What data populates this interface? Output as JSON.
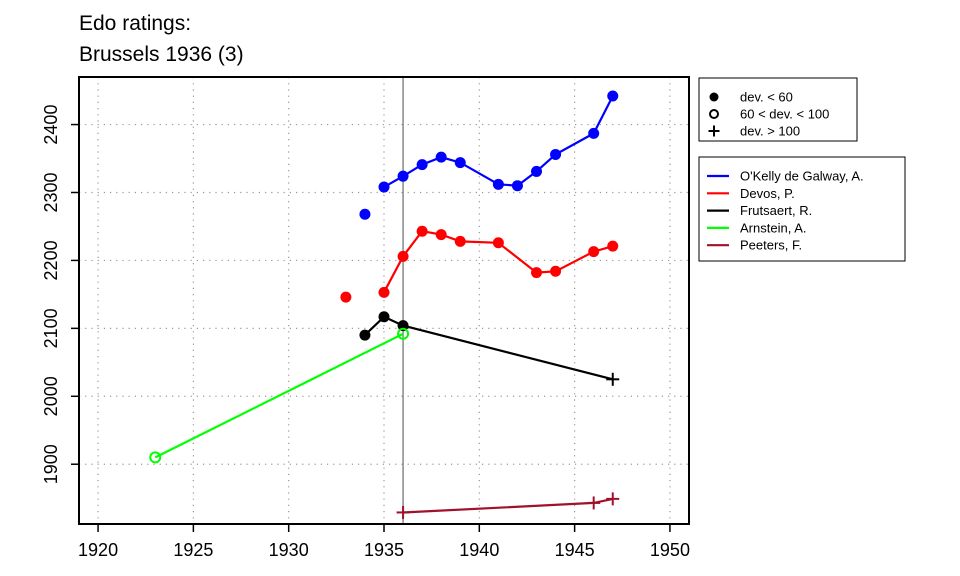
{
  "chart_data": {
    "type": "line",
    "title": "Edo ratings:",
    "subtitle": "Brussels 1936 (3)",
    "xlabel": "",
    "ylabel": "",
    "xlim": [
      1919,
      1951
    ],
    "ylim": [
      1812,
      2470
    ],
    "xticks": [
      1920,
      1925,
      1930,
      1935,
      1940,
      1945,
      1950
    ],
    "yticks": [
      1900,
      2000,
      2100,
      2200,
      2300,
      2400
    ],
    "grid": true,
    "reference_line_x": 1936,
    "marker_legend": {
      "placement": "top-right-outside",
      "entries": [
        {
          "marker": "filled",
          "label": "dev. < 60"
        },
        {
          "marker": "open",
          "label": "60 < dev. < 100"
        },
        {
          "marker": "plus",
          "label": "dev. > 100"
        }
      ]
    },
    "legend_placement": "right-outside",
    "series": [
      {
        "name": "O'Kelly de Galway, A.",
        "color": "#0000ff",
        "points": [
          {
            "x": 1934,
            "y": 2268,
            "marker": "filled"
          },
          {
            "x": 1935,
            "y": 2308,
            "marker": "filled"
          },
          {
            "x": 1936,
            "y": 2324,
            "marker": "filled"
          },
          {
            "x": 1937,
            "y": 2341,
            "marker": "filled"
          },
          {
            "x": 1938,
            "y": 2352,
            "marker": "filled"
          },
          {
            "x": 1939,
            "y": 2344,
            "marker": "filled"
          },
          {
            "x": 1941,
            "y": 2312,
            "marker": "filled"
          },
          {
            "x": 1942,
            "y": 2310,
            "marker": "filled"
          },
          {
            "x": 1943,
            "y": 2331,
            "marker": "filled"
          },
          {
            "x": 1944,
            "y": 2356,
            "marker": "filled"
          },
          {
            "x": 1946,
            "y": 2387,
            "marker": "filled"
          },
          {
            "x": 1947,
            "y": 2442,
            "marker": "filled"
          }
        ],
        "connected": [
          [
            1935,
            1947
          ]
        ]
      },
      {
        "name": "Devos, P.",
        "color": "#ff0000",
        "points": [
          {
            "x": 1933,
            "y": 2146,
            "marker": "filled"
          },
          {
            "x": 1935,
            "y": 2153,
            "marker": "filled"
          },
          {
            "x": 1936,
            "y": 2206,
            "marker": "filled"
          },
          {
            "x": 1937,
            "y": 2243,
            "marker": "filled"
          },
          {
            "x": 1938,
            "y": 2238,
            "marker": "filled"
          },
          {
            "x": 1939,
            "y": 2228,
            "marker": "filled"
          },
          {
            "x": 1941,
            "y": 2226,
            "marker": "filled"
          },
          {
            "x": 1943,
            "y": 2182,
            "marker": "filled"
          },
          {
            "x": 1944,
            "y": 2184,
            "marker": "filled"
          },
          {
            "x": 1946,
            "y": 2213,
            "marker": "filled"
          },
          {
            "x": 1947,
            "y": 2221,
            "marker": "filled"
          }
        ],
        "connected": [
          [
            1935,
            1947
          ]
        ]
      },
      {
        "name": "Frutsaert, R.",
        "color": "#000000",
        "points": [
          {
            "x": 1934,
            "y": 2090,
            "marker": "filled"
          },
          {
            "x": 1935,
            "y": 2117,
            "marker": "filled"
          },
          {
            "x": 1936,
            "y": 2104,
            "marker": "filled"
          },
          {
            "x": 1947,
            "y": 2025,
            "marker": "plus"
          }
        ],
        "connected": [
          [
            1934,
            1947
          ]
        ]
      },
      {
        "name": "Arnstein, A.",
        "color": "#00ff00",
        "points": [
          {
            "x": 1923,
            "y": 1910,
            "marker": "open"
          },
          {
            "x": 1936,
            "y": 2092,
            "marker": "open"
          }
        ],
        "connected": [
          [
            1923,
            1936
          ]
        ]
      },
      {
        "name": "Peeters, F.",
        "color": "#a0112b",
        "points": [
          {
            "x": 1936,
            "y": 1829,
            "marker": "plus"
          },
          {
            "x": 1946,
            "y": 1843,
            "marker": "plus"
          },
          {
            "x": 1947,
            "y": 1849,
            "marker": "plus"
          }
        ],
        "connected": [
          [
            1936,
            1947
          ]
        ]
      }
    ]
  }
}
